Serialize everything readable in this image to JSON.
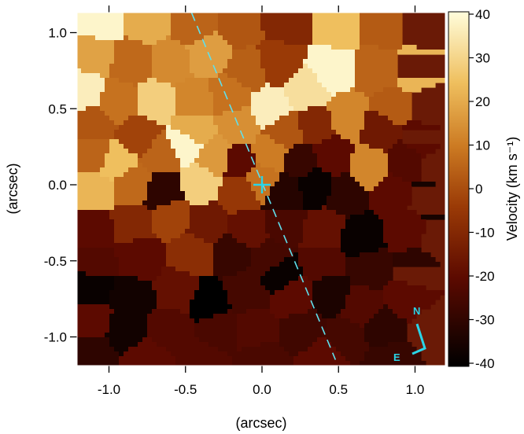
{
  "chart_data": {
    "type": "heatmap",
    "title": "",
    "xlabel": "(arcsec)",
    "ylabel": "(arcsec)",
    "colorbar_label": "Velocity (km s⁻¹)",
    "xlim": [
      -1.2,
      1.2
    ],
    "ylim": [
      -1.2,
      1.15
    ],
    "clim": [
      -40,
      40
    ],
    "x_ticks": [
      "-1.0",
      "-0.5",
      "0.0",
      "0.5",
      "1.0"
    ],
    "y_ticks": [
      "1.0",
      "0.5",
      "0.0",
      "-0.5",
      "-1.0"
    ],
    "colorbar_ticks": [
      "40",
      "30",
      "20",
      "10",
      "0",
      "-10",
      "-20",
      "-30",
      "-40"
    ],
    "colormap": "afmhot",
    "grid": false,
    "center_marker": {
      "x": 0.0,
      "y": 0.0,
      "symbol": "+",
      "color": "#2ad4e6"
    },
    "position_angle_line": {
      "x": [
        -0.46,
        0.48
      ],
      "y": [
        1.13,
        -1.15
      ],
      "style": "dashed",
      "color": "#5fe0ec"
    },
    "compass": {
      "labels": [
        "N",
        "E"
      ],
      "color": "#2ad4e6"
    },
    "bins": [
      {
        "x": -1.05,
        "y": 1.08,
        "v": 38
      },
      {
        "x": -0.75,
        "y": 1.08,
        "v": 20
      },
      {
        "x": -0.45,
        "y": 1.05,
        "v": 5
      },
      {
        "x": -0.15,
        "y": 1.05,
        "v": 2
      },
      {
        "x": 0.15,
        "y": 1.08,
        "v": -10
      },
      {
        "x": 0.5,
        "y": 1.05,
        "v": 24
      },
      {
        "x": 0.8,
        "y": 1.05,
        "v": 3
      },
      {
        "x": 1.05,
        "y": 1.05,
        "v": -5
      },
      {
        "x": -1.1,
        "y": 0.85,
        "v": 18
      },
      {
        "x": -0.85,
        "y": 0.8,
        "v": 6
      },
      {
        "x": -0.6,
        "y": 0.8,
        "v": 13
      },
      {
        "x": -0.35,
        "y": 0.85,
        "v": 17
      },
      {
        "x": -0.1,
        "y": 0.75,
        "v": 4
      },
      {
        "x": 0.1,
        "y": 0.8,
        "v": -4
      },
      {
        "x": 0.45,
        "y": 0.75,
        "v": 38
      },
      {
        "x": 0.3,
        "y": 0.62,
        "v": 32
      },
      {
        "x": 0.75,
        "y": 0.75,
        "v": 5
      },
      {
        "x": 1.0,
        "y": 0.75,
        "v": 22
      },
      {
        "x": -1.15,
        "y": 0.62,
        "v": 36
      },
      {
        "x": -0.95,
        "y": 0.55,
        "v": 8
      },
      {
        "x": -0.7,
        "y": 0.55,
        "v": 28
      },
      {
        "x": -0.45,
        "y": 0.55,
        "v": 12
      },
      {
        "x": -0.2,
        "y": 0.6,
        "v": 8
      },
      {
        "x": 0.05,
        "y": 0.5,
        "v": 36
      },
      {
        "x": 0.55,
        "y": 0.45,
        "v": 12
      },
      {
        "x": 0.85,
        "y": 0.5,
        "v": 3
      },
      {
        "x": 1.1,
        "y": 0.5,
        "v": -3
      },
      {
        "x": -1.1,
        "y": 0.4,
        "v": 2
      },
      {
        "x": -0.8,
        "y": 0.32,
        "v": -2
      },
      {
        "x": -0.45,
        "y": 0.35,
        "v": 20
      },
      {
        "x": -0.15,
        "y": 0.38,
        "v": 14
      },
      {
        "x": 0.15,
        "y": 0.35,
        "v": 2
      },
      {
        "x": 0.35,
        "y": 0.4,
        "v": -10
      },
      {
        "x": 0.78,
        "y": 0.38,
        "v": -15
      },
      {
        "x": 1.05,
        "y": 0.3,
        "v": -20
      },
      {
        "x": -1.1,
        "y": 0.2,
        "v": 5
      },
      {
        "x": -0.95,
        "y": 0.15,
        "v": 24
      },
      {
        "x": -0.65,
        "y": 0.2,
        "v": 5
      },
      {
        "x": -0.5,
        "y": 0.27,
        "v": 38
      },
      {
        "x": -0.3,
        "y": 0.18,
        "v": 16
      },
      {
        "x": -0.15,
        "y": 0.15,
        "v": -20
      },
      {
        "x": 0.05,
        "y": 0.2,
        "v": 10
      },
      {
        "x": 0.25,
        "y": 0.15,
        "v": -28
      },
      {
        "x": 0.45,
        "y": 0.18,
        "v": -20
      },
      {
        "x": 0.7,
        "y": 0.1,
        "v": 12
      },
      {
        "x": 0.95,
        "y": 0.15,
        "v": -22
      },
      {
        "x": 1.15,
        "y": 0.12,
        "v": -25
      },
      {
        "x": -1.1,
        "y": -0.05,
        "v": 22
      },
      {
        "x": -0.85,
        "y": 0.0,
        "v": 6
      },
      {
        "x": -0.65,
        "y": -0.05,
        "v": -30
      },
      {
        "x": -0.4,
        "y": 0.0,
        "v": 28
      },
      {
        "x": -0.15,
        "y": -0.05,
        "v": -5
      },
      {
        "x": 0.0,
        "y": 0.03,
        "v": 8
      },
      {
        "x": 0.15,
        "y": -0.05,
        "v": -32
      },
      {
        "x": 0.35,
        "y": 0.0,
        "v": -38
      },
      {
        "x": 0.55,
        "y": -0.05,
        "v": -30
      },
      {
        "x": 0.85,
        "y": -0.05,
        "v": -20
      },
      {
        "x": 1.1,
        "y": -0.1,
        "v": -35
      },
      {
        "x": -1.1,
        "y": -0.3,
        "v": -20
      },
      {
        "x": -0.85,
        "y": -0.25,
        "v": -10
      },
      {
        "x": -0.6,
        "y": -0.2,
        "v": -2
      },
      {
        "x": -0.35,
        "y": -0.25,
        "v": -15
      },
      {
        "x": -0.1,
        "y": -0.3,
        "v": -18
      },
      {
        "x": 0.15,
        "y": -0.25,
        "v": -24
      },
      {
        "x": 0.4,
        "y": -0.3,
        "v": -18
      },
      {
        "x": 0.65,
        "y": -0.35,
        "v": -38
      },
      {
        "x": 0.95,
        "y": -0.3,
        "v": -20
      },
      {
        "x": 1.15,
        "y": -0.35,
        "v": -36
      },
      {
        "x": -1.1,
        "y": -0.5,
        "v": -22
      },
      {
        "x": -0.8,
        "y": -0.48,
        "v": -20
      },
      {
        "x": -0.45,
        "y": -0.45,
        "v": -8
      },
      {
        "x": -0.2,
        "y": -0.45,
        "v": -28
      },
      {
        "x": 0.05,
        "y": -0.5,
        "v": -25
      },
      {
        "x": 0.1,
        "y": -0.58,
        "v": -38
      },
      {
        "x": 0.4,
        "y": -0.5,
        "v": -22
      },
      {
        "x": 0.7,
        "y": -0.55,
        "v": -28
      },
      {
        "x": 1.0,
        "y": -0.55,
        "v": -30
      },
      {
        "x": -1.12,
        "y": -0.68,
        "v": -38
      },
      {
        "x": -0.85,
        "y": -0.75,
        "v": -36
      },
      {
        "x": -0.55,
        "y": -0.7,
        "v": -18
      },
      {
        "x": -0.35,
        "y": -0.78,
        "v": -40
      },
      {
        "x": -0.1,
        "y": -0.7,
        "v": -25
      },
      {
        "x": 0.2,
        "y": -0.75,
        "v": -20
      },
      {
        "x": 0.45,
        "y": -0.72,
        "v": -34
      },
      {
        "x": 0.65,
        "y": -0.8,
        "v": -22
      },
      {
        "x": 0.95,
        "y": -0.75,
        "v": -20
      },
      {
        "x": -1.1,
        "y": -0.9,
        "v": -20
      },
      {
        "x": -0.9,
        "y": -0.95,
        "v": -36
      },
      {
        "x": -0.6,
        "y": -0.95,
        "v": -22
      },
      {
        "x": -0.3,
        "y": -0.95,
        "v": -24
      },
      {
        "x": -0.05,
        "y": -0.95,
        "v": -22
      },
      {
        "x": 0.25,
        "y": -0.95,
        "v": -26
      },
      {
        "x": 0.55,
        "y": -1.0,
        "v": -25
      },
      {
        "x": 0.8,
        "y": -0.95,
        "v": -30
      },
      {
        "x": 1.1,
        "y": -0.95,
        "v": -22
      },
      {
        "x": -1.1,
        "y": -1.1,
        "v": -30
      },
      {
        "x": -0.75,
        "y": -1.15,
        "v": -20
      },
      {
        "x": -0.4,
        "y": -1.15,
        "v": -22
      },
      {
        "x": 0.0,
        "y": -1.15,
        "v": -24
      },
      {
        "x": 0.4,
        "y": -1.15,
        "v": -20
      },
      {
        "x": 0.85,
        "y": -1.15,
        "v": -28
      }
    ]
  }
}
